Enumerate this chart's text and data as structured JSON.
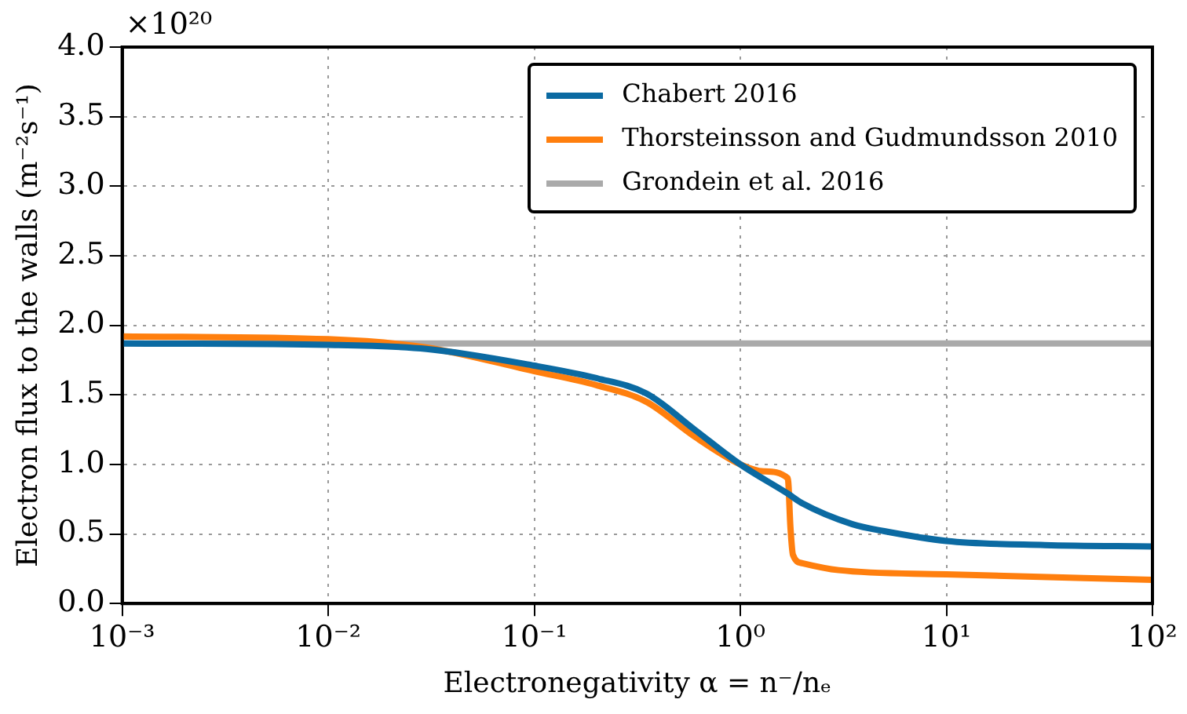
{
  "chart_data": {
    "type": "line",
    "xlabel": "Electronegativity α = n⁻/nₑ",
    "ylabel": "Electron flux to the walls (m⁻²s⁻¹)",
    "annotations": [
      "×10²⁰"
    ],
    "log": "x",
    "xlim": [
      0.001,
      100
    ],
    "xticks": [
      {
        "value": 0.001,
        "label": "10⁻³"
      },
      {
        "value": 0.01,
        "label": "10⁻²"
      },
      {
        "value": 0.1,
        "label": "10⁻¹"
      },
      {
        "value": 1,
        "label": "10⁰"
      },
      {
        "value": 10,
        "label": "10¹"
      },
      {
        "value": 100,
        "label": "10²"
      }
    ],
    "ylim": [
      0,
      4
    ],
    "yticks": [
      {
        "value": 0,
        "label": "0.0"
      },
      0.5,
      {
        "value": 1,
        "label": "1.0"
      },
      1.5,
      {
        "value": 2,
        "label": "2.0"
      },
      2.5,
      {
        "value": 3,
        "label": "3.0"
      },
      3.5,
      {
        "value": 4,
        "label": "4.0"
      }
    ],
    "grid": true,
    "legend": "top right",
    "marker": "none",
    "line_style": "solid",
    "series": [
      {
        "name": "Chabert 2016",
        "color": "#0b6aa2",
        "x": [
          0.001,
          0.01,
          0.03,
          0.1,
          0.2,
          0.35,
          0.6,
          1,
          1.7,
          2,
          3.5,
          5,
          10,
          30,
          100
        ],
        "values": [
          1.87,
          1.86,
          1.83,
          1.71,
          1.62,
          1.51,
          1.25,
          1.0,
          0.79,
          0.72,
          0.57,
          0.52,
          0.45,
          0.42,
          0.41
        ]
      },
      {
        "name": "Thorsteinsson and Gudmundsson 2010",
        "color": "#ff7f0e",
        "x": [
          0.001,
          0.01,
          0.03,
          0.1,
          0.2,
          0.35,
          0.6,
          1,
          1.3,
          1.7,
          1.75,
          1.8,
          2,
          3,
          10,
          100
        ],
        "values": [
          1.92,
          1.9,
          1.84,
          1.67,
          1.57,
          1.45,
          1.2,
          1.0,
          0.95,
          0.9,
          0.55,
          0.35,
          0.29,
          0.24,
          0.21,
          0.17
        ]
      },
      {
        "name": "Grondein et al. 2016",
        "color": "#aaaaaa",
        "x": [
          0.001,
          100
        ],
        "values": [
          1.87,
          1.87
        ]
      }
    ]
  }
}
